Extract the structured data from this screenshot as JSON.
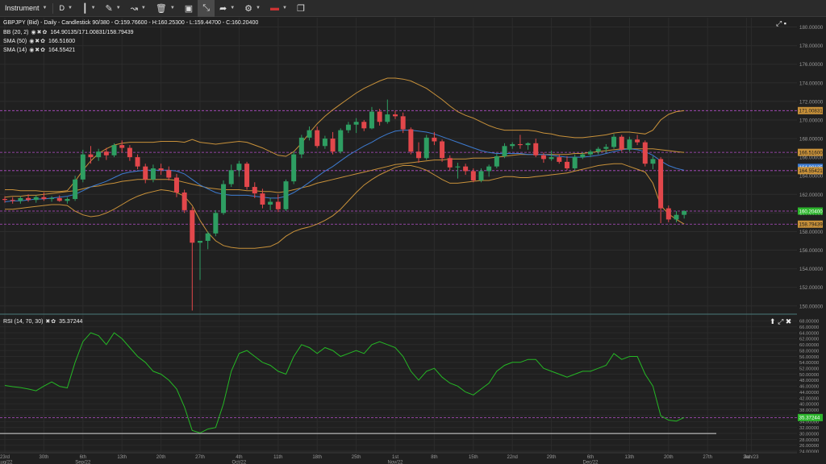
{
  "toolbar": {
    "instrument": "Instrument",
    "timeframe": "D"
  },
  "legend": {
    "main": "GBPJPY (Bid) - Daily - Candlestick",
    "main_values": "90/380 - O:159.76600 - H:160.25300 - L:159.44700 - C:160.20400",
    "bb_label": "BB (20, 2)",
    "bb_values": "164.90135/171.00831/158.79439",
    "sma50_label": "SMA (50)",
    "sma50_value": "166.51600",
    "sma14_label": "SMA (14)",
    "sma14_value": "164.55421",
    "rsi_label": "RSI (14, 70, 30)",
    "rsi_value": "35.37244"
  },
  "colors": {
    "background": "#202020",
    "bull": "#2e9e62",
    "bear": "#e2474b",
    "bollinger": "#c8913a",
    "sma50": "#c8913a",
    "sma14": "#3d7bd0",
    "rsi": "#25b825",
    "level_line": "#b44dc8",
    "price_tag": "#2cb52c",
    "bb_tag": "#c8913a"
  },
  "chart_data": [
    {
      "type": "candlestick",
      "title": "GBPJPY (Bid) - Daily - Candlestick",
      "ylim": [
        149.2,
        181
      ],
      "y_ticks": [
        "150.00000",
        "152.00000",
        "154.00000",
        "156.00000",
        "158.00000",
        "160.00000",
        "162.00000",
        "164.00000",
        "166.00000",
        "168.00000",
        "170.00000",
        "172.00000",
        "174.00000",
        "176.00000",
        "178.00000",
        "180.00000"
      ],
      "x_ticks": [
        {
          "label": "23rd",
          "sub": "Aug/22",
          "idx": 0
        },
        {
          "label": "30th",
          "sub": "",
          "idx": 5
        },
        {
          "label": "6th",
          "sub": "Sep/22",
          "idx": 10
        },
        {
          "label": "13th",
          "sub": "",
          "idx": 15
        },
        {
          "label": "20th",
          "sub": "",
          "idx": 20
        },
        {
          "label": "27th",
          "sub": "",
          "idx": 25
        },
        {
          "label": "4th",
          "sub": "Oct/22",
          "idx": 30
        },
        {
          "label": "11th",
          "sub": "",
          "idx": 35
        },
        {
          "label": "18th",
          "sub": "",
          "idx": 40
        },
        {
          "label": "25th",
          "sub": "",
          "idx": 45
        },
        {
          "label": "1st",
          "sub": "Nov/22",
          "idx": 50
        },
        {
          "label": "8th",
          "sub": "",
          "idx": 55
        },
        {
          "label": "15th",
          "sub": "",
          "idx": 60
        },
        {
          "label": "22nd",
          "sub": "",
          "idx": 65
        },
        {
          "label": "29th",
          "sub": "",
          "idx": 70
        },
        {
          "label": "6th",
          "sub": "Dec/22",
          "idx": 75
        },
        {
          "label": "13th",
          "sub": "",
          "idx": 80
        },
        {
          "label": "20th",
          "sub": "",
          "idx": 85
        },
        {
          "label": "27th",
          "sub": "",
          "idx": 90
        },
        {
          "label": "3rd",
          "sub": "",
          "idx": 95
        },
        {
          "label": "Jan/23",
          "sub": "",
          "idx": 95.6
        }
      ],
      "ohlc": [
        [
          161.5,
          161.8,
          161.1,
          161.4
        ],
        [
          161.4,
          161.7,
          161.0,
          161.3
        ],
        [
          161.3,
          161.8,
          161.0,
          161.6
        ],
        [
          161.6,
          162.0,
          161.2,
          161.4
        ],
        [
          161.4,
          161.9,
          161.1,
          161.7
        ],
        [
          161.7,
          162.2,
          161.3,
          161.5
        ],
        [
          161.5,
          161.8,
          161.2,
          161.6
        ],
        [
          161.6,
          161.9,
          161.2,
          161.3
        ],
        [
          161.3,
          161.7,
          161.0,
          161.5
        ],
        [
          161.5,
          164.0,
          161.3,
          163.6
        ],
        [
          163.6,
          166.8,
          163.3,
          166.3
        ],
        [
          166.3,
          167.2,
          165.3,
          166.0
        ],
        [
          166.0,
          166.9,
          165.6,
          166.6
        ],
        [
          166.6,
          167.0,
          165.7,
          166.2
        ],
        [
          166.2,
          167.5,
          166.0,
          167.3
        ],
        [
          167.3,
          167.8,
          166.5,
          167.0
        ],
        [
          167.0,
          167.3,
          165.6,
          166.0
        ],
        [
          166.0,
          166.3,
          164.7,
          165.0
        ],
        [
          165.0,
          165.3,
          163.2,
          163.6
        ],
        [
          163.6,
          165.2,
          163.3,
          164.8
        ],
        [
          164.8,
          165.3,
          164.1,
          164.6
        ],
        [
          164.6,
          165.0,
          163.5,
          163.8
        ],
        [
          163.8,
          164.2,
          161.7,
          162.2
        ],
        [
          162.2,
          162.5,
          160.0,
          160.3
        ],
        [
          160.3,
          160.6,
          149.5,
          156.8
        ],
        [
          156.8,
          157.0,
          152.8,
          157.0
        ],
        [
          157.0,
          158.0,
          156.1,
          157.8
        ],
        [
          157.8,
          160.3,
          157.5,
          160.0
        ],
        [
          160.0,
          163.5,
          159.8,
          163.1
        ],
        [
          163.1,
          165.2,
          162.8,
          164.6
        ],
        [
          164.6,
          165.6,
          163.9,
          165.3
        ],
        [
          165.3,
          165.5,
          162.5,
          162.8
        ],
        [
          162.8,
          163.3,
          161.6,
          162.1
        ],
        [
          162.1,
          162.6,
          160.5,
          160.9
        ],
        [
          160.9,
          161.6,
          160.3,
          161.2
        ],
        [
          161.2,
          162.0,
          160.1,
          160.4
        ],
        [
          160.4,
          163.6,
          160.2,
          163.4
        ],
        [
          163.4,
          166.6,
          163.1,
          166.3
        ],
        [
          166.3,
          168.4,
          165.9,
          168.1
        ],
        [
          168.1,
          169.3,
          167.8,
          168.9
        ],
        [
          168.9,
          169.3,
          167.0,
          167.2
        ],
        [
          167.2,
          168.3,
          166.9,
          168.0
        ],
        [
          168.0,
          168.7,
          166.3,
          166.6
        ],
        [
          166.6,
          169.1,
          166.4,
          168.9
        ],
        [
          168.9,
          169.8,
          168.6,
          169.5
        ],
        [
          169.5,
          170.2,
          168.6,
          169.8
        ],
        [
          169.8,
          170.0,
          168.8,
          169.1
        ],
        [
          169.1,
          171.4,
          169.0,
          170.9
        ],
        [
          170.9,
          171.2,
          169.4,
          169.8
        ],
        [
          169.8,
          172.2,
          169.6,
          170.6
        ],
        [
          170.6,
          171.0,
          170.1,
          170.4
        ],
        [
          170.4,
          170.8,
          168.6,
          169.0
        ],
        [
          169.0,
          169.2,
          166.3,
          166.6
        ],
        [
          166.6,
          167.6,
          165.4,
          165.9
        ],
        [
          165.9,
          168.4,
          165.7,
          168.1
        ],
        [
          168.1,
          168.7,
          167.3,
          167.7
        ],
        [
          167.7,
          167.9,
          165.5,
          165.9
        ],
        [
          165.9,
          166.2,
          164.6,
          164.9
        ],
        [
          164.9,
          165.4,
          163.7,
          165.0
        ],
        [
          165.0,
          165.3,
          164.1,
          164.5
        ],
        [
          164.5,
          164.8,
          163.3,
          163.5
        ],
        [
          163.5,
          164.8,
          163.3,
          164.5
        ],
        [
          164.5,
          165.2,
          163.9,
          165.0
        ],
        [
          165.0,
          166.4,
          164.8,
          166.1
        ],
        [
          166.1,
          167.5,
          165.9,
          167.2
        ],
        [
          167.2,
          167.6,
          166.9,
          167.4
        ],
        [
          167.4,
          168.4,
          166.9,
          167.3
        ],
        [
          167.3,
          167.6,
          166.8,
          167.5
        ],
        [
          167.5,
          168.0,
          166.0,
          166.2
        ],
        [
          166.2,
          166.5,
          165.4,
          165.8
        ],
        [
          165.8,
          166.7,
          165.6,
          166.0
        ],
        [
          166.0,
          166.3,
          165.3,
          165.5
        ],
        [
          165.5,
          166.1,
          164.6,
          164.8
        ],
        [
          164.8,
          166.3,
          164.6,
          166.0
        ],
        [
          166.0,
          166.5,
          165.8,
          166.3
        ],
        [
          166.3,
          166.8,
          166.0,
          166.6
        ],
        [
          166.6,
          167.1,
          166.3,
          166.9
        ],
        [
          166.9,
          167.4,
          166.5,
          167.1
        ],
        [
          167.1,
          168.5,
          166.9,
          168.2
        ],
        [
          168.2,
          168.4,
          166.6,
          166.8
        ],
        [
          166.8,
          168.2,
          166.6,
          167.9
        ],
        [
          167.9,
          168.4,
          167.3,
          167.6
        ],
        [
          167.6,
          167.8,
          165.0,
          165.3
        ],
        [
          165.3,
          166.1,
          164.7,
          165.8
        ],
        [
          165.8,
          166.0,
          158.9,
          160.5
        ],
        [
          160.5,
          160.8,
          159.0,
          159.3
        ],
        [
          159.3,
          160.2,
          159.0,
          159.8
        ],
        [
          159.8,
          160.3,
          159.4,
          160.2
        ]
      ],
      "bollinger_upper": [
        162.5,
        162.5,
        162.4,
        162.4,
        162.4,
        162.3,
        162.3,
        162.3,
        162.4,
        163.4,
        164.6,
        165.6,
        166.4,
        166.9,
        167.3,
        167.5,
        167.6,
        167.6,
        167.6,
        167.6,
        167.7,
        167.7,
        167.7,
        167.6,
        167.9,
        167.6,
        167.5,
        167.4,
        167.5,
        167.6,
        167.7,
        167.6,
        167.3,
        167.0,
        166.6,
        166.2,
        166.1,
        166.6,
        167.5,
        168.6,
        169.6,
        170.4,
        171.1,
        171.7,
        172.3,
        172.9,
        173.4,
        173.8,
        174.2,
        174.5,
        174.5,
        174.4,
        174.2,
        173.8,
        173.4,
        172.8,
        172.2,
        171.5,
        170.9,
        170.5,
        170.2,
        169.8,
        169.4,
        169.1,
        168.9,
        168.9,
        168.9,
        168.9,
        168.8,
        168.6,
        168.5,
        168.3,
        168.2,
        168.1,
        168.1,
        168.2,
        168.3,
        168.4,
        168.6,
        168.7,
        168.7,
        168.6,
        168.5,
        168.9,
        170.0,
        170.6,
        170.9,
        171.0
      ],
      "bollinger_lower": [
        160.4,
        160.4,
        160.5,
        160.6,
        160.7,
        160.8,
        160.9,
        160.9,
        160.8,
        160.2,
        159.8,
        159.6,
        159.7,
        160.0,
        160.4,
        160.9,
        161.4,
        161.8,
        162.1,
        162.3,
        162.5,
        162.4,
        162.2,
        161.8,
        160.8,
        159.2,
        157.9,
        157.0,
        156.5,
        156.3,
        156.2,
        156.2,
        156.2,
        156.3,
        156.4,
        156.8,
        157.5,
        158.0,
        158.3,
        158.5,
        158.8,
        159.2,
        159.7,
        160.4,
        161.3,
        162.2,
        163.0,
        163.6,
        164.1,
        164.5,
        164.9,
        165.1,
        165.1,
        164.9,
        164.6,
        164.1,
        163.6,
        163.2,
        163.2,
        163.3,
        163.4,
        163.5,
        163.5,
        163.7,
        163.9,
        163.9,
        163.8,
        163.8,
        163.9,
        164.0,
        164.1,
        164.2,
        164.3,
        164.5,
        164.7,
        164.9,
        165.1,
        165.2,
        165.3,
        165.3,
        165.0,
        164.7,
        164.4,
        163.2,
        160.8,
        159.9,
        159.3,
        158.8
      ],
      "sma50": [
        161.7,
        161.8,
        161.8,
        161.9,
        161.9,
        162.0,
        162.1,
        162.2,
        162.3,
        162.4,
        162.6,
        162.8,
        162.9,
        163.1,
        163.2,
        163.4,
        163.5,
        163.6,
        163.6,
        163.6,
        163.6,
        163.6,
        163.5,
        163.3,
        163.1,
        162.9,
        162.7,
        162.6,
        162.5,
        162.5,
        162.5,
        162.4,
        162.4,
        162.3,
        162.3,
        162.2,
        162.3,
        162.5,
        162.7,
        162.9,
        163.2,
        163.4,
        163.6,
        163.8,
        164.0,
        164.2,
        164.4,
        164.6,
        164.8,
        165.0,
        165.2,
        165.3,
        165.4,
        165.5,
        165.6,
        165.7,
        165.7,
        165.8,
        165.8,
        165.8,
        165.9,
        165.9,
        165.9,
        166.0,
        166.1,
        166.2,
        166.3,
        166.3,
        166.3,
        166.3,
        166.3,
        166.3,
        166.3,
        166.4,
        166.4,
        166.5,
        166.6,
        166.7,
        166.8,
        166.9,
        166.9,
        166.9,
        166.9,
        166.9,
        166.8,
        166.7,
        166.6,
        166.5
      ],
      "sma14": [
        161.2,
        161.3,
        161.3,
        161.4,
        161.5,
        161.5,
        161.6,
        161.7,
        161.8,
        162.0,
        162.4,
        162.8,
        163.1,
        163.4,
        163.8,
        164.2,
        164.4,
        164.5,
        164.6,
        164.6,
        164.6,
        164.6,
        164.5,
        164.2,
        163.6,
        163.0,
        162.6,
        162.2,
        162.0,
        161.9,
        161.9,
        161.9,
        161.8,
        161.7,
        161.6,
        161.6,
        161.8,
        162.2,
        162.7,
        163.3,
        163.9,
        164.5,
        165.0,
        165.6,
        166.2,
        166.7,
        167.2,
        167.6,
        168.1,
        168.5,
        168.8,
        168.9,
        168.9,
        168.8,
        168.7,
        168.5,
        168.2,
        167.9,
        167.6,
        167.3,
        167.0,
        166.7,
        166.5,
        166.4,
        166.4,
        166.4,
        166.4,
        166.3,
        166.3,
        166.3,
        166.2,
        166.1,
        166.0,
        166.0,
        166.0,
        166.1,
        166.2,
        166.4,
        166.6,
        166.8,
        166.9,
        166.8,
        166.6,
        166.2,
        165.6,
        165.1,
        164.8,
        164.6
      ],
      "levels": [
        171.00831,
        166.516,
        164.55421,
        160.204,
        158.79439
      ],
      "price_tags": [
        "171.00831",
        "166.51600",
        "164.90135",
        "164.55421",
        "160.20400",
        "158.79439"
      ]
    },
    {
      "type": "line",
      "title": "RSI (14, 70, 30)",
      "ylim": [
        23.5,
        70
      ],
      "y_ticks": [
        "24.00000",
        "26.00000",
        "28.00000",
        "30.00000",
        "32.00000",
        "34.00000",
        "36.00000",
        "38.00000",
        "40.00000",
        "42.00000",
        "44.00000",
        "46.00000",
        "48.00000",
        "50.00000",
        "52.00000",
        "54.00000",
        "56.00000",
        "58.00000",
        "60.00000",
        "62.00000",
        "64.00000",
        "66.00000",
        "68.00000"
      ],
      "levels": [
        30,
        35.37244
      ],
      "last_value_tag": "35.37244",
      "values": [
        46.2,
        45.8,
        45.5,
        45.0,
        44.4,
        46.0,
        47.4,
        45.9,
        45.4,
        54.0,
        61.0,
        64.0,
        63.0,
        60.0,
        64.0,
        62.0,
        59.0,
        56.0,
        54.0,
        51.0,
        50.0,
        48.0,
        45.0,
        39.0,
        31.0,
        30.2,
        31.5,
        32.0,
        40.0,
        51.0,
        57.0,
        58.0,
        56.0,
        54.0,
        53.0,
        51.0,
        50.0,
        56.0,
        60.0,
        59.0,
        57.0,
        59.0,
        58.0,
        56.0,
        57.0,
        58.0,
        57.0,
        60.0,
        61.0,
        60.0,
        59.0,
        56.0,
        51.0,
        48.0,
        51.0,
        52.0,
        49.0,
        47.0,
        46.0,
        44.0,
        43.0,
        45.0,
        47.0,
        51.0,
        53.0,
        54.0,
        54.0,
        55.0,
        55.0,
        52.0,
        51.0,
        50.0,
        49.0,
        50.0,
        51.0,
        51.0,
        52.0,
        53.0,
        57.0,
        55.0,
        56.0,
        56.0,
        50.0,
        46.0,
        36.0,
        34.5,
        34.2,
        35.37
      ]
    }
  ]
}
